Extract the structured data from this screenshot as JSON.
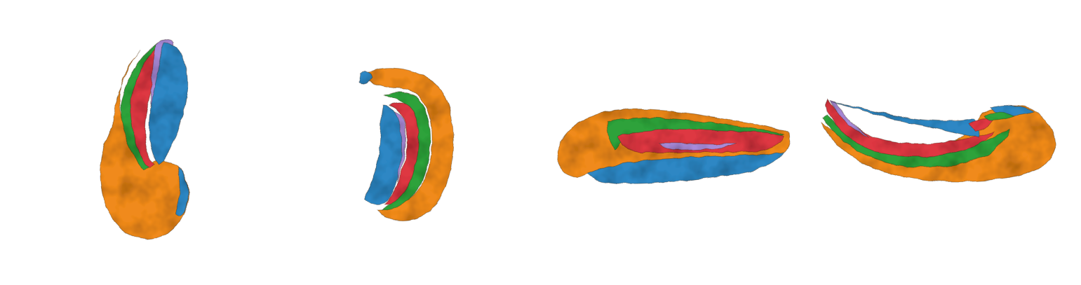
{
  "colors": {
    "background": "#ffffff",
    "orange": "#f08a1c",
    "blue": "#2f87c4",
    "green": "#2ea23a",
    "red": "#de3742",
    "violet": "#a88ad8",
    "shadow": "#3a2410"
  },
  "views": [
    {
      "name": "view-1",
      "orientation": "vertical-hook"
    },
    {
      "name": "view-2",
      "orientation": "vertical-c-shape"
    },
    {
      "name": "view-3",
      "orientation": "horizontal-elongated"
    },
    {
      "name": "view-4",
      "orientation": "horizontal-curved"
    }
  ]
}
